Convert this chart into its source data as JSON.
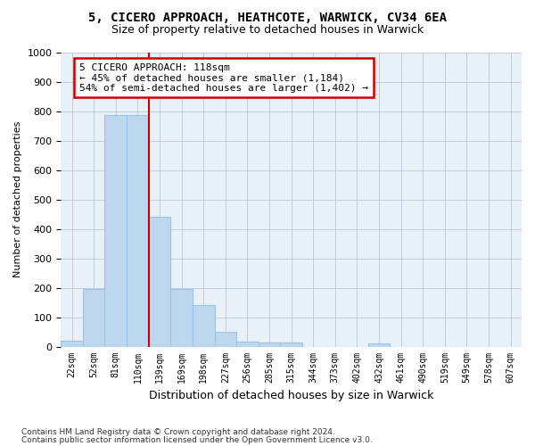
{
  "title_line1": "5, CICERO APPROACH, HEATHCOTE, WARWICK, CV34 6EA",
  "title_line2": "Size of property relative to detached houses in Warwick",
  "xlabel": "Distribution of detached houses by size in Warwick",
  "ylabel": "Number of detached properties",
  "footer_line1": "Contains HM Land Registry data © Crown copyright and database right 2024.",
  "footer_line2": "Contains public sector information licensed under the Open Government Licence v3.0.",
  "annotation_line1": "5 CICERO APPROACH: 118sqm",
  "annotation_line2": "← 45% of detached houses are smaller (1,184)",
  "annotation_line3": "54% of semi-detached houses are larger (1,402) →",
  "bar_values": [
    20,
    196,
    789,
    789,
    443,
    197,
    140,
    50,
    17,
    13,
    13,
    0,
    0,
    0,
    11,
    0,
    0,
    0,
    0,
    0,
    0
  ],
  "bar_labels": [
    "22sqm",
    "52sqm",
    "81sqm",
    "110sqm",
    "139sqm",
    "169sqm",
    "198sqm",
    "227sqm",
    "256sqm",
    "285sqm",
    "315sqm",
    "344sqm",
    "373sqm",
    "402sqm",
    "432sqm",
    "461sqm",
    "490sqm",
    "519sqm",
    "549sqm",
    "578sqm",
    "607sqm"
  ],
  "bar_color": "#BDD7EE",
  "bar_edge_color": "#9DC3E6",
  "vline_color": "#CC0000",
  "vline_x": 3.5,
  "ylim": [
    0,
    1000
  ],
  "yticks": [
    0,
    100,
    200,
    300,
    400,
    500,
    600,
    700,
    800,
    900,
    1000
  ],
  "annotation_box_color": "#CC0000",
  "bg_color": "#FFFFFF",
  "axes_bg_color": "#E8F0F8",
  "grid_color": "#BBBBCC"
}
